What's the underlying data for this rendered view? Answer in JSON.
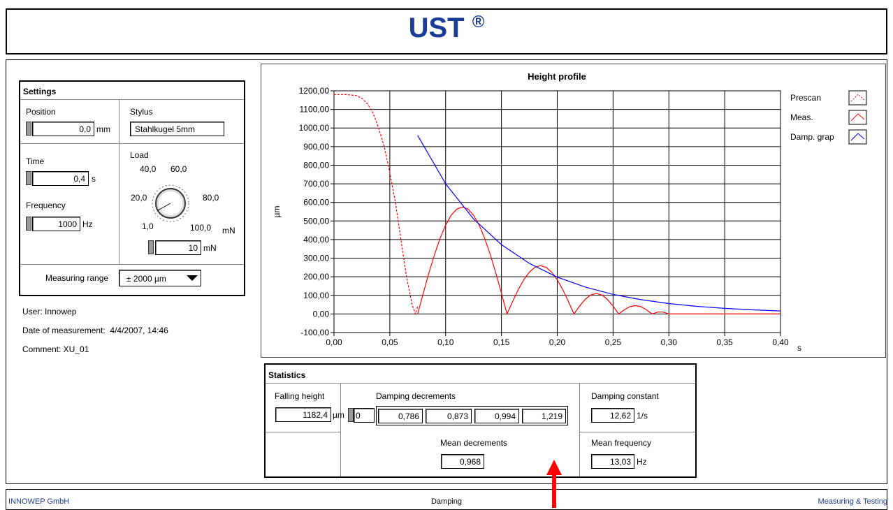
{
  "header": {
    "title": "UST",
    "mark": "®"
  },
  "settings": {
    "title": "Settings",
    "position": {
      "label": "Position",
      "value": "0,0",
      "unit": "mm"
    },
    "stylus": {
      "label": "Stylus",
      "value": "Stahlkugel 5mm"
    },
    "time": {
      "label": "Time",
      "value": "0,4",
      "unit": "s"
    },
    "frequency": {
      "label": "Frequency",
      "value": "1000",
      "unit": "Hz"
    },
    "load": {
      "label": "Load",
      "dial_labels": [
        "40,0",
        "60,0",
        "20,0",
        "80,0",
        "1,0",
        "100,0"
      ],
      "dial_unit": "mN",
      "value": "10",
      "unit": "mN"
    },
    "measuring_range": {
      "label": "Measuring range",
      "value": "± 2000 µm"
    }
  },
  "info": [
    "User: Innowep",
    "Date of measurement:  4/4/2007, 14:46",
    "Comment: XU_01"
  ],
  "chart_data": {
    "type": "line",
    "title": "Height profile",
    "y_label": "µm",
    "x_label": "s",
    "xlim": [
      0,
      0.4
    ],
    "ylim": [
      -100,
      1200
    ],
    "grid": true,
    "legend": "right",
    "xticks": [
      {
        "value": 0,
        "label": "0,00"
      },
      {
        "value": 0.05,
        "label": "0,05"
      },
      {
        "value": 0.1,
        "label": "0,10"
      },
      {
        "value": 0.15,
        "label": "0,15"
      },
      {
        "value": 0.2,
        "label": "0,20"
      },
      {
        "value": 0.25,
        "label": "0,25"
      },
      {
        "value": 0.3,
        "label": "0,30"
      },
      {
        "value": 0.35,
        "label": "0,35"
      },
      {
        "value": 0.4,
        "label": "0,40"
      }
    ],
    "yticks": [
      {
        "value": -100,
        "label": "-100,00"
      },
      {
        "value": 0,
        "label": "0,00"
      },
      {
        "value": 100,
        "label": "100,00"
      },
      {
        "value": 200,
        "label": "200,00"
      },
      {
        "value": 300,
        "label": "300,00"
      },
      {
        "value": 400,
        "label": "400,00"
      },
      {
        "value": 500,
        "label": "500,00"
      },
      {
        "value": 600,
        "label": "600,00"
      },
      {
        "value": 700,
        "label": "700,00"
      },
      {
        "value": 800,
        "label": "800,00"
      },
      {
        "value": 900,
        "label": "900,00"
      },
      {
        "value": 1000,
        "label": "1000,00"
      },
      {
        "value": 1100,
        "label": "1100,00"
      },
      {
        "value": 1200,
        "label": "1200,00"
      }
    ],
    "series": [
      {
        "name": "Prescan",
        "color": "#ff0000",
        "dashed": true,
        "x": [
          0,
          0.01,
          0.02,
          0.025,
          0.03,
          0.035,
          0.04,
          0.045,
          0.05,
          0.055,
          0.06,
          0.065,
          0.07,
          0.073,
          0.075
        ],
        "values": [
          1180,
          1180,
          1175,
          1160,
          1130,
          1080,
          1000,
          900,
          760,
          600,
          400,
          200,
          50,
          0,
          40
        ]
      },
      {
        "name": "Meas.",
        "color": "#ff0000",
        "dashed": false,
        "x": [
          0.075,
          0.08,
          0.085,
          0.09,
          0.095,
          0.1,
          0.105,
          0.11,
          0.115,
          0.12,
          0.125,
          0.13,
          0.135,
          0.14,
          0.145,
          0.15,
          0.155,
          0.16,
          0.165,
          0.17,
          0.175,
          0.18,
          0.185,
          0.19,
          0.195,
          0.2,
          0.205,
          0.21,
          0.215,
          0.22,
          0.225,
          0.23,
          0.235,
          0.24,
          0.245,
          0.25,
          0.255,
          0.26,
          0.265,
          0.27,
          0.275,
          0.28,
          0.285,
          0.29,
          0.295,
          0.3,
          0.4
        ],
        "values": [
          0,
          112,
          220,
          319,
          407,
          478,
          531,
          564,
          575,
          564,
          531,
          478,
          407,
          319,
          220,
          112,
          0,
          67,
          130,
          184,
          225,
          251,
          260,
          251,
          225,
          184,
          130,
          67,
          0,
          42,
          78,
          102,
          110,
          102,
          78,
          42,
          0,
          22,
          39,
          45,
          39,
          22,
          0,
          10,
          10,
          0,
          0
        ]
      },
      {
        "name": "Damp. grap",
        "color": "#0000ff",
        "dashed": false,
        "x": [
          0.075,
          0.1,
          0.125,
          0.15,
          0.175,
          0.2,
          0.225,
          0.25,
          0.275,
          0.3,
          0.325,
          0.35,
          0.375,
          0.4
        ],
        "values": [
          960,
          700,
          511,
          373,
          272,
          198,
          145,
          105,
          77,
          56,
          41,
          30,
          22,
          16
        ]
      }
    ]
  },
  "statistics": {
    "title": "Statistics",
    "falling_height": {
      "label": "Falling height",
      "value": "1182,4",
      "unit": "µm"
    },
    "damping_decrements": {
      "label": "Damping decrements",
      "index": "0",
      "values": [
        "0,786",
        "0,873",
        "0,994",
        "1,219"
      ]
    },
    "mean_decrements": {
      "label": "Mean decrements",
      "value": "0,968"
    },
    "damping_constant": {
      "label": "Damping constant",
      "value": "12,62",
      "unit": "1/s"
    },
    "mean_frequency": {
      "label": "Mean frequency",
      "value": "13,03",
      "unit": "Hz"
    }
  },
  "footer": {
    "left": "INNOWEP GmbH",
    "center": "Damping",
    "right": "Measuring & Testing"
  }
}
